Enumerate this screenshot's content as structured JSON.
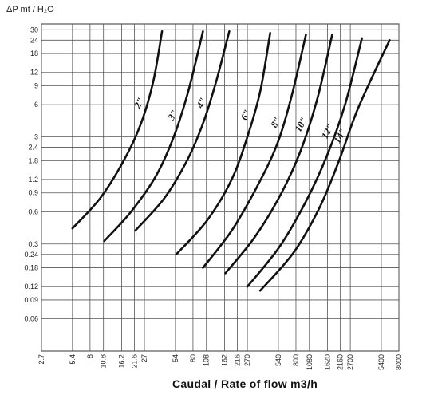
{
  "chart_data": {
    "type": "line",
    "title": "",
    "ylabel": "ΔP mt / H₂O",
    "xlabel": "Caudal / Rate of flow m3/h",
    "x_scale": "log",
    "y_scale": "log",
    "xlim": [
      2.7,
      8000
    ],
    "ylim": [
      0.03,
      34
    ],
    "x_ticks": [
      2.7,
      5.4,
      8,
      10.8,
      16.2,
      21.6,
      27,
      54,
      80,
      108,
      162,
      216,
      270,
      540,
      800,
      1080,
      1620,
      2160,
      2700,
      5400,
      8000
    ],
    "y_ticks": [
      30,
      24,
      18,
      12,
      9,
      6,
      3,
      2.4,
      1.8,
      1.2,
      0.9,
      0.6,
      0.3,
      0.24,
      0.18,
      0.12,
      0.09,
      0.06
    ],
    "grid": true,
    "series": [
      {
        "name": "2\"",
        "x": [
          5.4,
          10,
          17,
          25,
          33,
          40
        ],
        "y": [
          0.42,
          0.8,
          1.8,
          4,
          10,
          29
        ]
      },
      {
        "name": "3\"",
        "x": [
          11,
          20,
          35,
          52,
          72,
          100
        ],
        "y": [
          0.32,
          0.6,
          1.3,
          3,
          8,
          29
        ]
      },
      {
        "name": "4\"",
        "x": [
          22,
          42,
          70,
          100,
          135,
          180
        ],
        "y": [
          0.4,
          0.8,
          1.8,
          4,
          10,
          29
        ]
      },
      {
        "name": "6\"",
        "x": [
          55,
          110,
          190,
          270,
          360,
          450
        ],
        "y": [
          0.24,
          0.5,
          1.2,
          3,
          8,
          28
        ]
      },
      {
        "name": "8\"",
        "x": [
          100,
          190,
          330,
          520,
          720,
          1000
        ],
        "y": [
          0.18,
          0.4,
          1,
          2.5,
          7,
          27
        ]
      },
      {
        "name": "10\"",
        "x": [
          165,
          320,
          580,
          900,
          1300,
          1800
        ],
        "y": [
          0.16,
          0.35,
          0.9,
          2.3,
          7,
          27
        ]
      },
      {
        "name": "12\"",
        "x": [
          270,
          550,
          1000,
          1600,
          2400,
          3500
        ],
        "y": [
          0.12,
          0.28,
          0.75,
          2,
          6,
          25
        ]
      },
      {
        "name": "14\"",
        "x": [
          360,
          760,
          1350,
          2100,
          3200,
          6500
        ],
        "y": [
          0.11,
          0.25,
          0.65,
          1.8,
          5.5,
          24
        ]
      }
    ]
  }
}
